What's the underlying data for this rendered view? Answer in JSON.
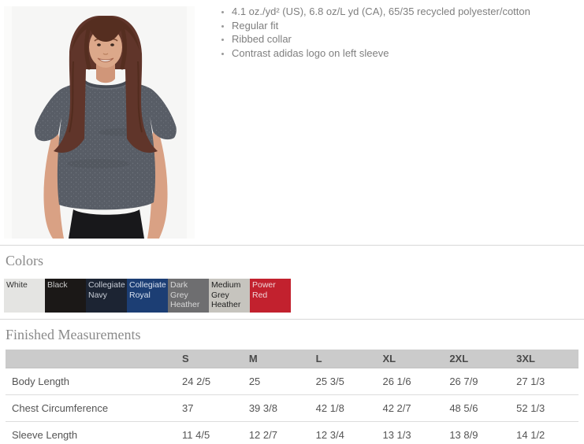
{
  "product": {
    "photo_description": "Female model wearing dark grey heather crew-neck t-shirt"
  },
  "features": [
    "4.1 oz./yd² (US), 6.8 oz/L yd (CA), 65/35 recycled polyester/cotton",
    "Regular fit",
    "Ribbed collar",
    "Contrast adidas logo on left sleeve"
  ],
  "colors": {
    "heading": "Colors",
    "swatches": [
      {
        "label": "White",
        "bg": "#e4e4e2",
        "text": "#333333",
        "heather": false
      },
      {
        "label": "Black",
        "bg": "#1b1817",
        "text": "#c9c9c9",
        "heather": false
      },
      {
        "label": "Collegiate Navy",
        "bg": "#1c2433",
        "text": "#c8cdd6",
        "heather": false
      },
      {
        "label": "Collegiate Royal",
        "bg": "#1c3e74",
        "text": "#d7e0ee",
        "heather": false
      },
      {
        "label": "Dark Grey Heather",
        "bg": "#6e6e70",
        "text": "#d8d8d8",
        "heather": "dark"
      },
      {
        "label": "Medium Grey Heather",
        "bg": "#c6c4be",
        "text": "#1e1e1e",
        "heather": "light"
      },
      {
        "label": "Power Red",
        "bg": "#c2212e",
        "text": "#f0d6d8",
        "heather": false
      }
    ]
  },
  "measurements": {
    "heading": "Finished Measurements",
    "columns": [
      "S",
      "M",
      "L",
      "XL",
      "2XL",
      "3XL"
    ],
    "rows": [
      {
        "label": "Body Length",
        "values": [
          "24 2/5",
          "25",
          "25 3/5",
          "26 1/6",
          "26 7/9",
          "27 1/3"
        ]
      },
      {
        "label": "Chest Circumference",
        "values": [
          "37",
          "39 3/8",
          "42 1/8",
          "42 2/7",
          "48 5/6",
          "52 1/3"
        ]
      },
      {
        "label": "Sleeve Length",
        "values": [
          "11 4/5",
          "12 2/7",
          "12 3/4",
          "13 1/3",
          "13 8/9",
          "14 1/2"
        ]
      }
    ]
  }
}
